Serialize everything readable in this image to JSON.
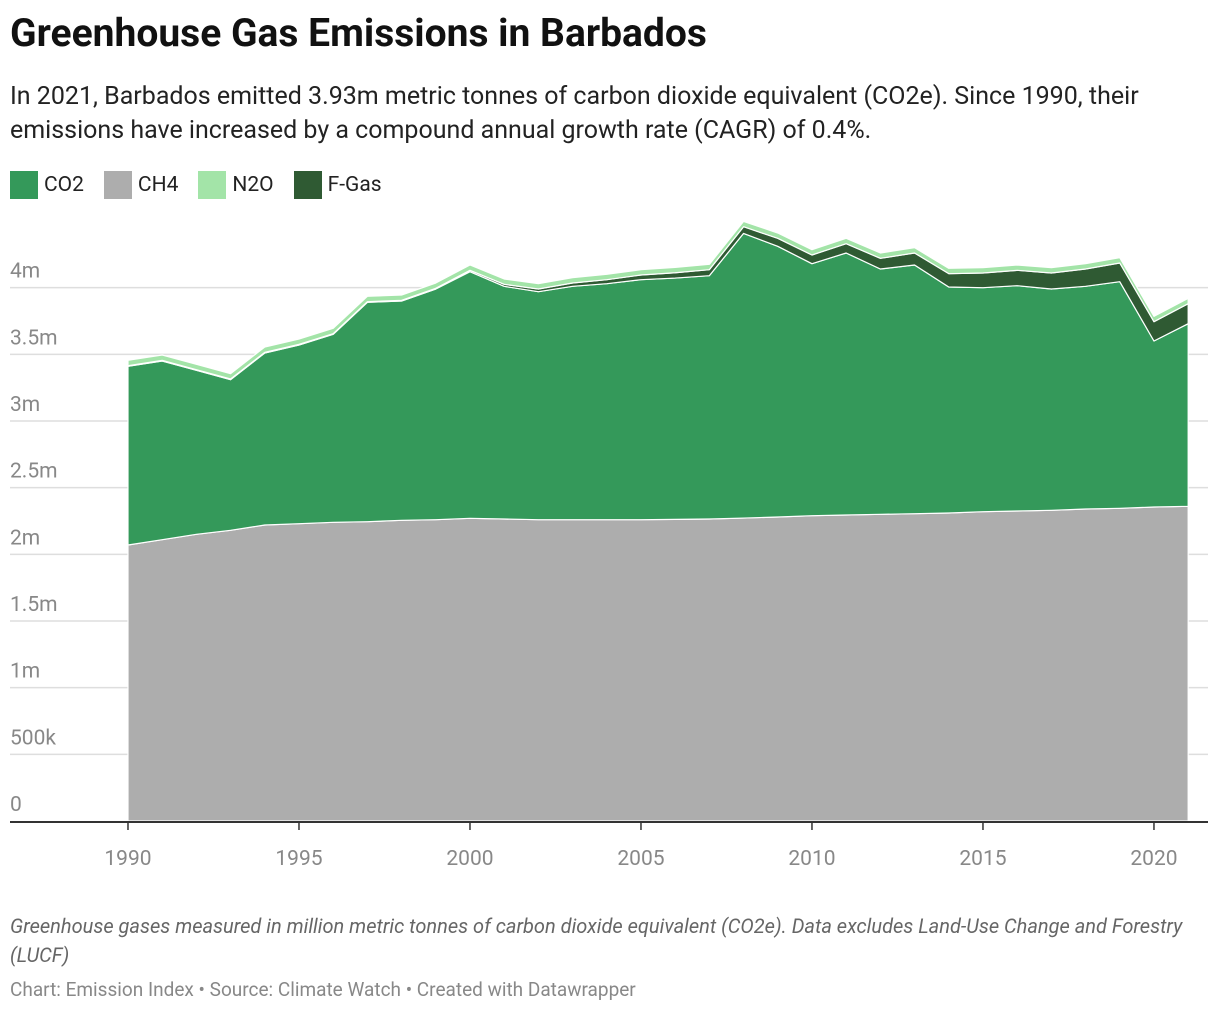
{
  "chart_data": {
    "type": "stacked-area",
    "title": "Greenhouse Gas Emissions in Barbados",
    "subtitle": "In 2021, Barbados emitted 3.93m metric tonnes of carbon dioxide equivalent (CO2e). Since 1990, their emissions have increased by a compound annual growth rate (CAGR) of 0.4%.",
    "note": "Greenhouse gases measured in million metric tonnes of carbon dioxide equivalent (CO2e). Data excludes Land-Use Change and Forestry (LUCF)",
    "source": "Chart: Emission Index • Source: Climate Watch • Created with Datawrapper",
    "x": [
      1990,
      1991,
      1992,
      1993,
      1994,
      1995,
      1996,
      1997,
      1998,
      1999,
      2000,
      2001,
      2002,
      2003,
      2004,
      2005,
      2006,
      2007,
      2008,
      2009,
      2010,
      2011,
      2012,
      2013,
      2014,
      2015,
      2016,
      2017,
      2018,
      2019,
      2020,
      2021
    ],
    "series": [
      {
        "name": "CO2",
        "color": "#34995a",
        "values": [
          1.34,
          1.34,
          1.23,
          1.13,
          1.29,
          1.34,
          1.41,
          1.645,
          1.645,
          1.73,
          1.85,
          1.745,
          1.71,
          1.75,
          1.77,
          1.8,
          1.81,
          1.825,
          2.135,
          2.03,
          1.89,
          1.965,
          1.84,
          1.865,
          1.695,
          1.68,
          1.69,
          1.66,
          1.67,
          1.7,
          1.245,
          1.37
        ]
      },
      {
        "name": "CH4",
        "color": "#adadad",
        "values": [
          2.07,
          2.11,
          2.15,
          2.18,
          2.22,
          2.23,
          2.24,
          2.245,
          2.255,
          2.26,
          2.27,
          2.265,
          2.26,
          2.26,
          2.26,
          2.26,
          2.262,
          2.265,
          2.272,
          2.28,
          2.29,
          2.295,
          2.3,
          2.305,
          2.31,
          2.32,
          2.325,
          2.33,
          2.34,
          2.345,
          2.355,
          2.36
        ]
      },
      {
        "name": "N2O",
        "color": "#a3e4a8",
        "values": [
          0.04,
          0.04,
          0.04,
          0.04,
          0.04,
          0.04,
          0.04,
          0.04,
          0.04,
          0.04,
          0.04,
          0.04,
          0.04,
          0.04,
          0.04,
          0.04,
          0.04,
          0.04,
          0.04,
          0.04,
          0.04,
          0.04,
          0.04,
          0.04,
          0.04,
          0.04,
          0.04,
          0.04,
          0.04,
          0.04,
          0.04,
          0.04
        ]
      },
      {
        "name": "F-Gas",
        "color": "#2f5a33",
        "values": [
          0.005,
          0.005,
          0.005,
          0.005,
          0.005,
          0.005,
          0.005,
          0.005,
          0.005,
          0.005,
          0.01,
          0.015,
          0.02,
          0.025,
          0.03,
          0.035,
          0.04,
          0.045,
          0.05,
          0.06,
          0.065,
          0.07,
          0.08,
          0.09,
          0.1,
          0.11,
          0.115,
          0.12,
          0.13,
          0.14,
          0.145,
          0.15
        ]
      }
    ],
    "xlim": [
      1986.55,
      2021.58
    ],
    "xticks": [
      1990,
      1995,
      2000,
      2005,
      2010,
      2015,
      2020
    ],
    "ylim": [
      0,
      4.5
    ],
    "yticks": [
      0,
      {
        "value": 0.5,
        "label": "500k"
      },
      {
        "value": 1,
        "label": "1m"
      },
      {
        "value": 1.5,
        "label": "1.5m"
      },
      {
        "value": 2,
        "label": "2m"
      },
      {
        "value": 2.5,
        "label": "2.5m"
      },
      {
        "value": 3,
        "label": "3m"
      },
      {
        "value": 3.5,
        "label": "3.5m"
      },
      {
        "value": 4,
        "label": "4m"
      }
    ],
    "grid": true
  }
}
